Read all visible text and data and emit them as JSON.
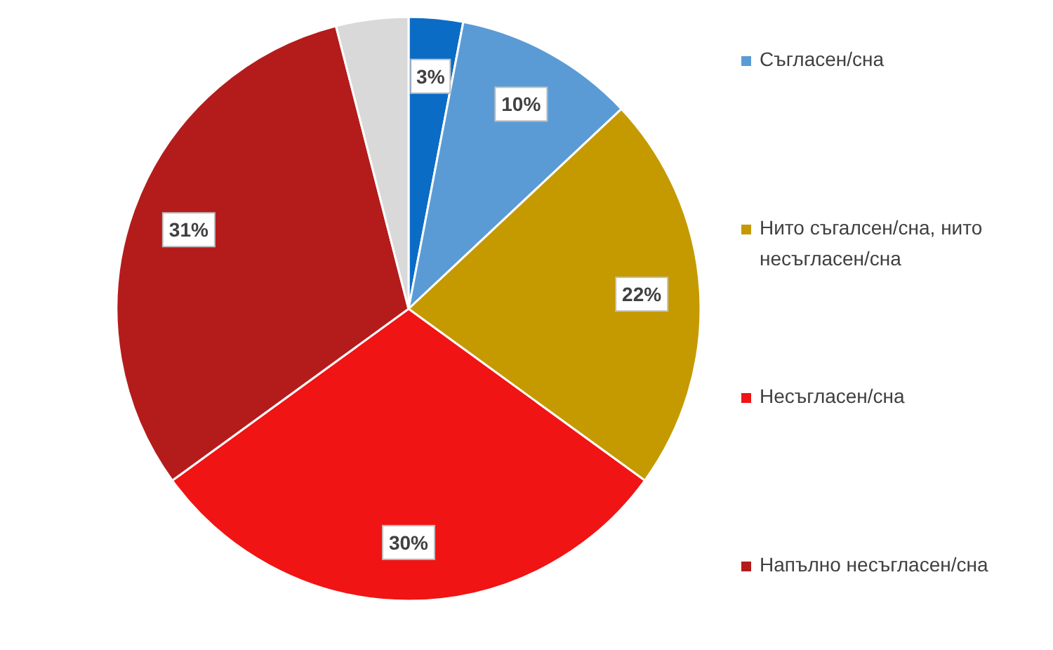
{
  "chart_data": {
    "type": "pie",
    "categories": [
      null,
      "Съгласен/сна",
      "Нито съгалсен/сна, нито несъгласен/сна",
      "Несъгласен/сна",
      "Напълно несъгласен/сна",
      null
    ],
    "values": [
      3,
      10,
      22,
      30,
      31,
      4
    ],
    "colors": [
      "#0b6cc6",
      "#5b9bd5",
      "#c49a00",
      "#f01414",
      "#b41c1c",
      "#d9d9d9"
    ],
    "value_labels": [
      "3%",
      "10%",
      "22%",
      "30%",
      "31%",
      null
    ],
    "legend": "right"
  }
}
